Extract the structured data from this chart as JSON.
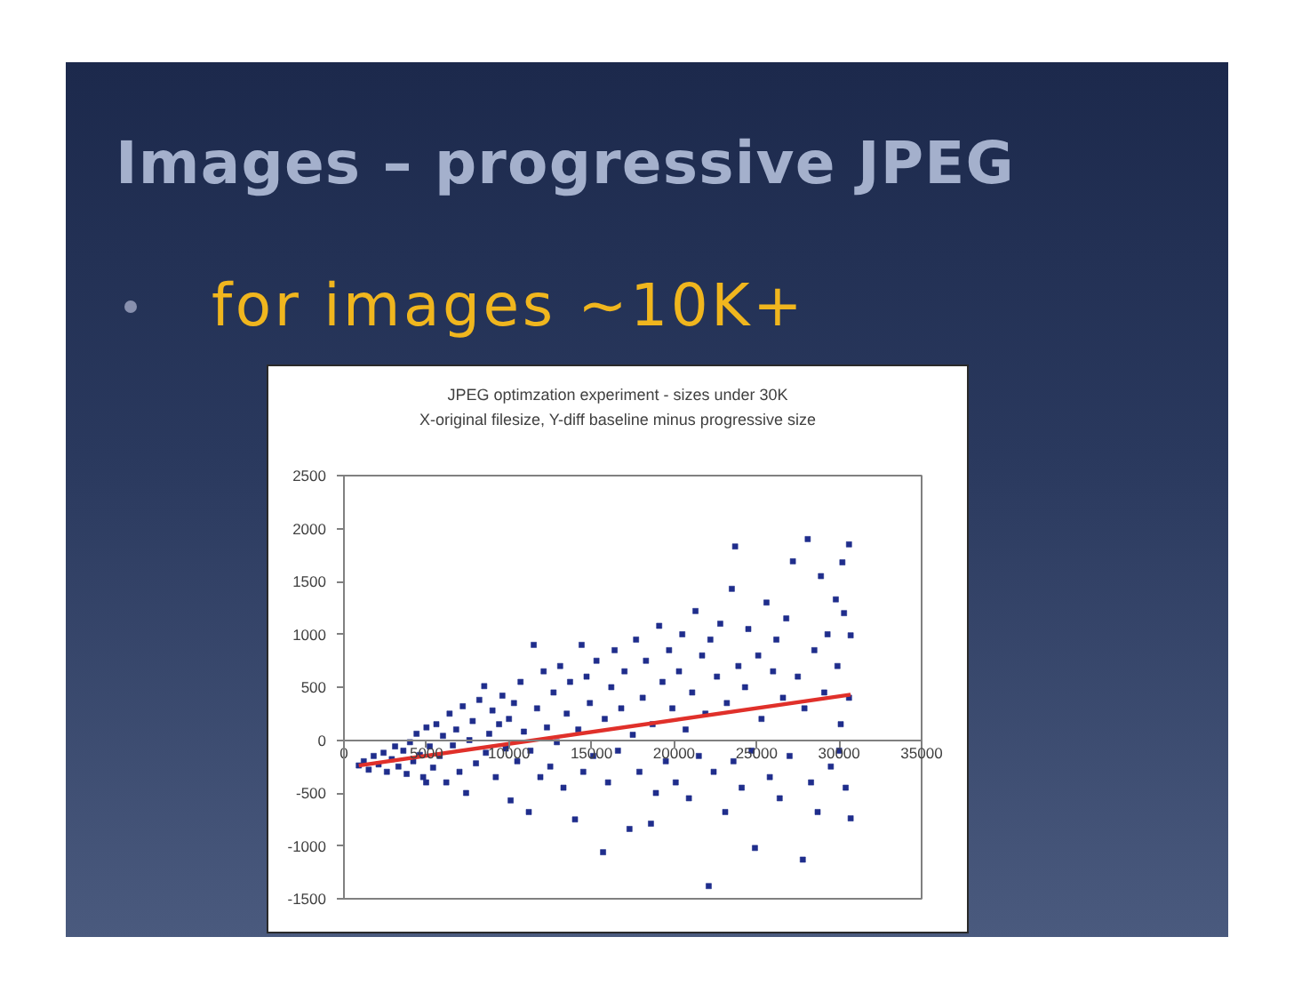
{
  "chart_data": {
    "type": "scatter",
    "title": "JPEG optimzation experiment - sizes under 30K",
    "subtitle": "X-original filesize, Y-diff baseline minus progressive size",
    "annotations": [
      "Images – progressive JPEG",
      "for images ~10K+"
    ],
    "xlim": [
      0,
      35000
    ],
    "xticks": [
      0,
      5000,
      10000,
      15000,
      20000,
      25000,
      30000,
      35000
    ],
    "ylim": [
      -1500,
      2500
    ],
    "yticks": [
      -1500,
      -1000,
      -500,
      0,
      500,
      1000,
      1500,
      2000,
      2500
    ],
    "grid": false,
    "marker": "square",
    "series": [
      {
        "color": "#1f2d8c",
        "x": [
          900,
          1200,
          1500,
          1800,
          2100,
          2400,
          2600,
          2900,
          3100,
          3300,
          3600,
          3800,
          4000,
          4200,
          4400,
          4600,
          4800,
          4980,
          5000,
          5200,
          5400,
          5600,
          5800,
          6000,
          6200,
          6400,
          6600,
          6800,
          7000,
          7200,
          7400,
          7600,
          7800,
          8000,
          8200,
          8500,
          8600,
          8800,
          9000,
          9200,
          9400,
          9600,
          9800,
          10000,
          10100,
          10300,
          10500,
          10700,
          10900,
          11200,
          11300,
          11500,
          11700,
          11900,
          12100,
          12300,
          12500,
          12700,
          12900,
          13100,
          13300,
          13500,
          13700,
          14000,
          14200,
          14400,
          14500,
          14700,
          14900,
          15100,
          15300,
          15700,
          15800,
          16000,
          16200,
          16400,
          16600,
          16800,
          17000,
          17300,
          17500,
          17700,
          17900,
          18100,
          18300,
          18600,
          18700,
          18900,
          19100,
          19300,
          19500,
          19700,
          19900,
          20100,
          20300,
          20500,
          20700,
          20900,
          21100,
          21300,
          21500,
          21700,
          21900,
          22100,
          22200,
          22400,
          22600,
          22800,
          23100,
          23200,
          23500,
          23600,
          23700,
          23900,
          24100,
          24300,
          24500,
          24700,
          24900,
          25100,
          25300,
          25600,
          25800,
          26000,
          26200,
          26400,
          26600,
          26800,
          27000,
          27200,
          27500,
          27800,
          27900,
          28100,
          28300,
          28500,
          28700,
          28900,
          29100,
          29300,
          29500,
          29800,
          29900,
          30000,
          30100,
          30200,
          30300,
          30400,
          30600,
          30600,
          30700,
          30700
        ],
        "values": [
          -240,
          -200,
          -280,
          -150,
          -230,
          -120,
          -300,
          -180,
          -60,
          -250,
          -100,
          -320,
          -20,
          -200,
          60,
          -140,
          -350,
          -400,
          120,
          -60,
          -260,
          150,
          -150,
          40,
          -400,
          250,
          -50,
          100,
          -300,
          320,
          -500,
          0,
          180,
          -220,
          380,
          510,
          -120,
          60,
          280,
          -350,
          150,
          420,
          -80,
          200,
          -570,
          350,
          -200,
          550,
          80,
          -680,
          -100,
          900,
          300,
          -350,
          650,
          120,
          -250,
          450,
          -20,
          700,
          -450,
          250,
          550,
          -750,
          100,
          900,
          -300,
          600,
          350,
          -150,
          750,
          -1060,
          200,
          -400,
          500,
          850,
          -100,
          300,
          650,
          -840,
          50,
          950,
          -300,
          400,
          750,
          -790,
          150,
          -500,
          1080,
          550,
          -200,
          850,
          300,
          -400,
          650,
          1000,
          100,
          -550,
          450,
          1220,
          -150,
          800,
          250,
          -1380,
          950,
          -300,
          600,
          1100,
          -680,
          350,
          1430,
          -200,
          1830,
          700,
          -450,
          500,
          1050,
          -100,
          -1020,
          800,
          200,
          1300,
          -350,
          650,
          950,
          -550,
          400,
          1150,
          -150,
          1690,
          600,
          -1130,
          300,
          1900,
          -400,
          850,
          -680,
          1550,
          450,
          1000,
          -250,
          1330,
          700,
          -100,
          150,
          1680,
          1200,
          -450,
          1850,
          400,
          -740,
          990
        ]
      },
      {
        "type": "line",
        "color": "#e0302a",
        "marker": "none",
        "line_style": "solid",
        "x": [
          900,
          30700
        ],
        "values": [
          -240,
          430
        ]
      }
    ]
  }
}
